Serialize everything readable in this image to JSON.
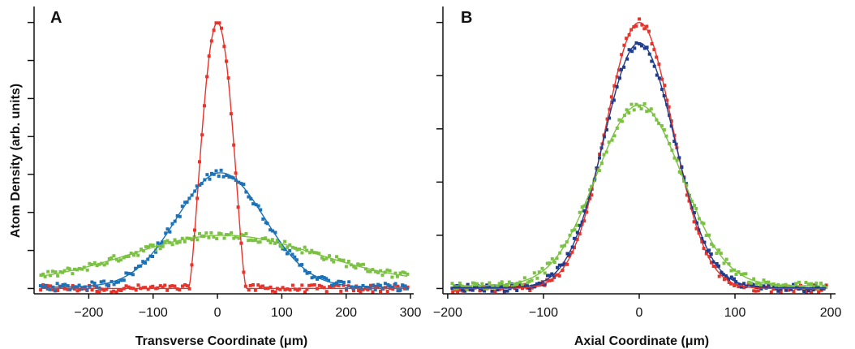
{
  "y_axis_title": "Atom Density (arb. units)",
  "chart_data": [
    {
      "type": "scatter",
      "panel_label": "A",
      "xlabel": "Transverse Coordinate (μm)",
      "ylabel": "Atom Density (arb. units)",
      "xlim": [
        -285,
        305
      ],
      "ylim": [
        -0.02,
        1.06
      ],
      "x_ticks": [
        -200,
        -100,
        0,
        100,
        200,
        300
      ],
      "x_tick_labels": [
        "−200",
        "−100",
        "0",
        "100",
        "200",
        "300"
      ],
      "y_ticks": [
        0,
        0.143,
        0.286,
        0.429,
        0.571,
        0.714,
        0.857,
        1.0
      ],
      "y_tick_labels": [],
      "series": [
        {
          "color": "#e8332b",
          "fit": {
            "shape": "bimodal",
            "amplitude": 1.0,
            "center": 0,
            "width": 45,
            "baseline": 0.0
          }
        },
        {
          "color": "#1a72b8",
          "fit": {
            "shape": "gaussian",
            "amplitude": 0.43,
            "center": 5,
            "width": 68,
            "baseline": 0.005
          }
        },
        {
          "color": "#7cc242",
          "fit": {
            "shape": "gaussian",
            "amplitude": 0.18,
            "center": 10,
            "width": 145,
            "baseline": 0.02
          }
        }
      ]
    },
    {
      "type": "scatter",
      "panel_label": "B",
      "xlabel": "Axial Coordinate (μm)",
      "ylabel": "",
      "xlim": [
        -205,
        205
      ],
      "ylim": [
        -0.02,
        1.06
      ],
      "x_ticks": [
        -200,
        -100,
        0,
        100,
        200
      ],
      "x_tick_labels": [
        "−200",
        "−100",
        "0",
        "100",
        "200"
      ],
      "y_ticks": [
        0,
        0.2,
        0.4,
        0.6,
        0.8,
        1.0
      ],
      "y_tick_labels": [],
      "series": [
        {
          "color": "#e8332b",
          "fit": {
            "shape": "gaussian",
            "amplitude": 1.0,
            "center": 0,
            "width": 35,
            "baseline": 0.0
          }
        },
        {
          "color": "#1f3d8f",
          "fit": {
            "shape": "gaussian",
            "amplitude": 0.92,
            "center": 0,
            "width": 37,
            "baseline": 0.003
          }
        },
        {
          "color": "#7cc242",
          "fit": {
            "shape": "gaussian",
            "amplitude": 0.68,
            "center": 0,
            "width": 45,
            "baseline": 0.01
          }
        }
      ]
    }
  ]
}
